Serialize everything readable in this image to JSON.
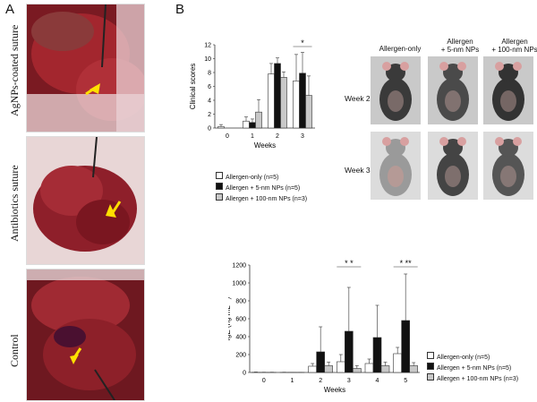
{
  "panels": {
    "a": "A",
    "b": "B"
  },
  "panel_a": {
    "labels": [
      "AgNPs-coated suture",
      "Antibiotics suture",
      "Control"
    ]
  },
  "photo_grid": {
    "columns": [
      "Allergen-only",
      "Allergen\n+ 5-nm NPs",
      "Allergen\n+ 100-nm NPs"
    ],
    "rows": [
      "Week 2",
      "Week 3"
    ]
  },
  "chart_data": [
    {
      "type": "bar",
      "ylabel": "Clinical scores",
      "xlabel": "Weeks",
      "categories": [
        "0",
        "1",
        "2",
        "3"
      ],
      "ylim": [
        0,
        12
      ],
      "yticks": [
        0,
        2,
        4,
        6,
        8,
        10,
        12
      ],
      "series": [
        {
          "name": "Allergen-only (n=5)",
          "color": "#ffffff",
          "values": [
            0.2,
            1.0,
            7.8,
            6.8
          ],
          "errors": [
            0.3,
            0.6,
            1.5,
            3.8
          ]
        },
        {
          "name": "Allergen + 5-nm NPs (n=5)",
          "color": "#111111",
          "values": [
            0.0,
            0.8,
            9.3,
            7.9
          ],
          "errors": [
            0.0,
            0.5,
            0.8,
            3.0
          ]
        },
        {
          "name": "Allergen + 100-nm NPs (n=3)",
          "color": "#c8c8c8",
          "values": [
            0.0,
            2.3,
            7.3,
            4.7
          ],
          "errors": [
            0.0,
            1.8,
            0.8,
            2.8
          ]
        }
      ],
      "significance": [
        {
          "category": "3",
          "label": "*"
        }
      ]
    },
    {
      "type": "bar",
      "ylabel": "IgE (ng mL⁻¹)",
      "xlabel": "Weeks",
      "categories": [
        "0",
        "1",
        "2",
        "3",
        "4",
        "5"
      ],
      "ylim": [
        0,
        1200
      ],
      "yticks": [
        0,
        200,
        400,
        600,
        800,
        1000,
        1200
      ],
      "series": [
        {
          "name": "Allergen-only (n=5)",
          "color": "#ffffff",
          "values": [
            2,
            1,
            70,
            120,
            100,
            210
          ],
          "errors": [
            3,
            2,
            30,
            80,
            50,
            70
          ]
        },
        {
          "name": "Allergen + 5-nm NPs (n=5)",
          "color": "#111111",
          "values": [
            1,
            1,
            230,
            460,
            390,
            580
          ],
          "errors": [
            2,
            1,
            280,
            490,
            360,
            520
          ]
        },
        {
          "name": "Allergen + 100-nm NPs (n=3)",
          "color": "#c8c8c8",
          "values": [
            1,
            1,
            75,
            45,
            75,
            75
          ],
          "errors": [
            2,
            1,
            40,
            30,
            40,
            35
          ]
        }
      ],
      "significance": [
        {
          "category": "3",
          "label": "*   *"
        },
        {
          "category": "5",
          "label": "*  **"
        }
      ]
    }
  ]
}
